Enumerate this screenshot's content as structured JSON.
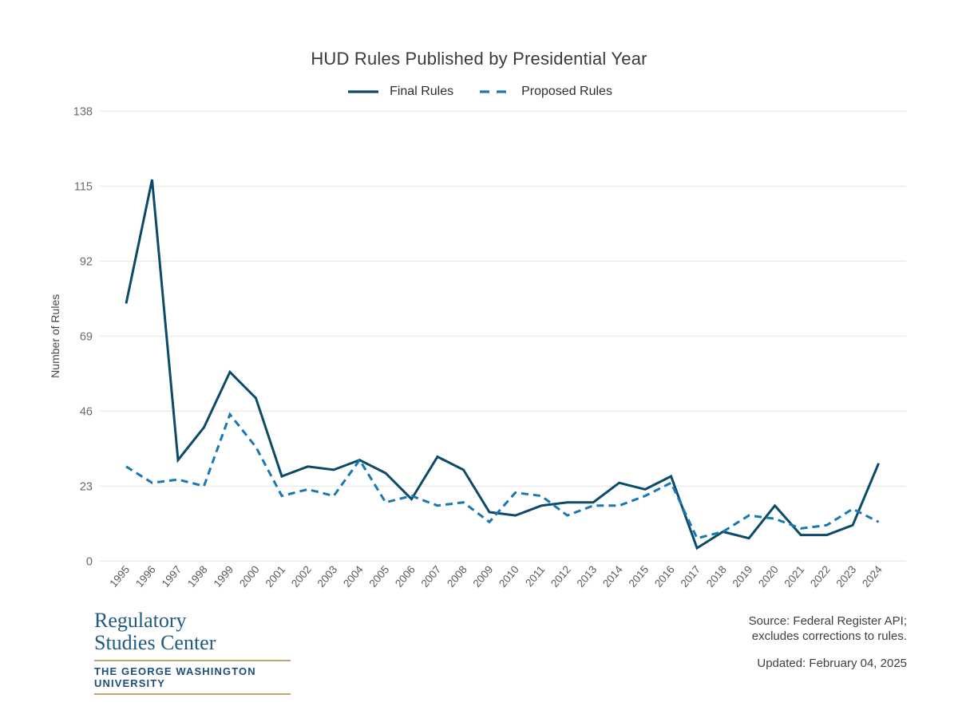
{
  "title": "HUD Rules Published by Presidential Year",
  "chart_data": {
    "type": "line",
    "title": "HUD Rules Published by Presidential Year",
    "xlabel": "",
    "ylabel": "Number of Rules",
    "x": [
      "1995",
      "1996",
      "1997",
      "1998",
      "1999",
      "2000",
      "2001",
      "2002",
      "2003",
      "2004",
      "2005",
      "2006",
      "2007",
      "2008",
      "2009",
      "2010",
      "2011",
      "2012",
      "2013",
      "2014",
      "2015",
      "2016",
      "2017",
      "2018",
      "2019",
      "2020",
      "2021",
      "2022",
      "2023",
      "2024"
    ],
    "yticks": [
      0,
      23,
      46,
      69,
      92,
      115,
      138
    ],
    "ylim": [
      0,
      138
    ],
    "grid": true,
    "legend_position": "top-center",
    "series": [
      {
        "name": "Final Rules",
        "style": "solid",
        "color": "#0b4a68",
        "values": [
          79,
          117,
          31,
          41,
          58,
          50,
          26,
          29,
          28,
          31,
          27,
          19,
          32,
          28,
          15,
          14,
          17,
          18,
          18,
          24,
          22,
          26,
          4,
          9,
          7,
          17,
          8,
          8,
          11,
          30
        ]
      },
      {
        "name": "Proposed Rules",
        "style": "dashed",
        "color": "#1878b4",
        "values": [
          29,
          24,
          25,
          23,
          45,
          35,
          20,
          22,
          20,
          31,
          18,
          20,
          17,
          18,
          12,
          21,
          20,
          14,
          17,
          17,
          20,
          24,
          7,
          9,
          14,
          13,
          10,
          11,
          16,
          12
        ]
      }
    ]
  },
  "axis": {
    "y_title": "Number of Rules"
  },
  "footer": {
    "source_line1": "Source: Federal Register API;",
    "source_line2": "excludes corrections to rules.",
    "updated": "Updated: February 04, 2025"
  },
  "logo": {
    "line1": "Regulatory",
    "line2": "Studies Center",
    "university": "THE GEORGE WASHINGTON UNIVERSITY",
    "text_color": "#1f5b80",
    "rule_color": "#c7a570"
  },
  "colors": {
    "gridline": "#e4e4e4",
    "tick_label": "#6a6a6a",
    "x_label": "#5a5a5a",
    "title_text": "#3a3a3a"
  }
}
